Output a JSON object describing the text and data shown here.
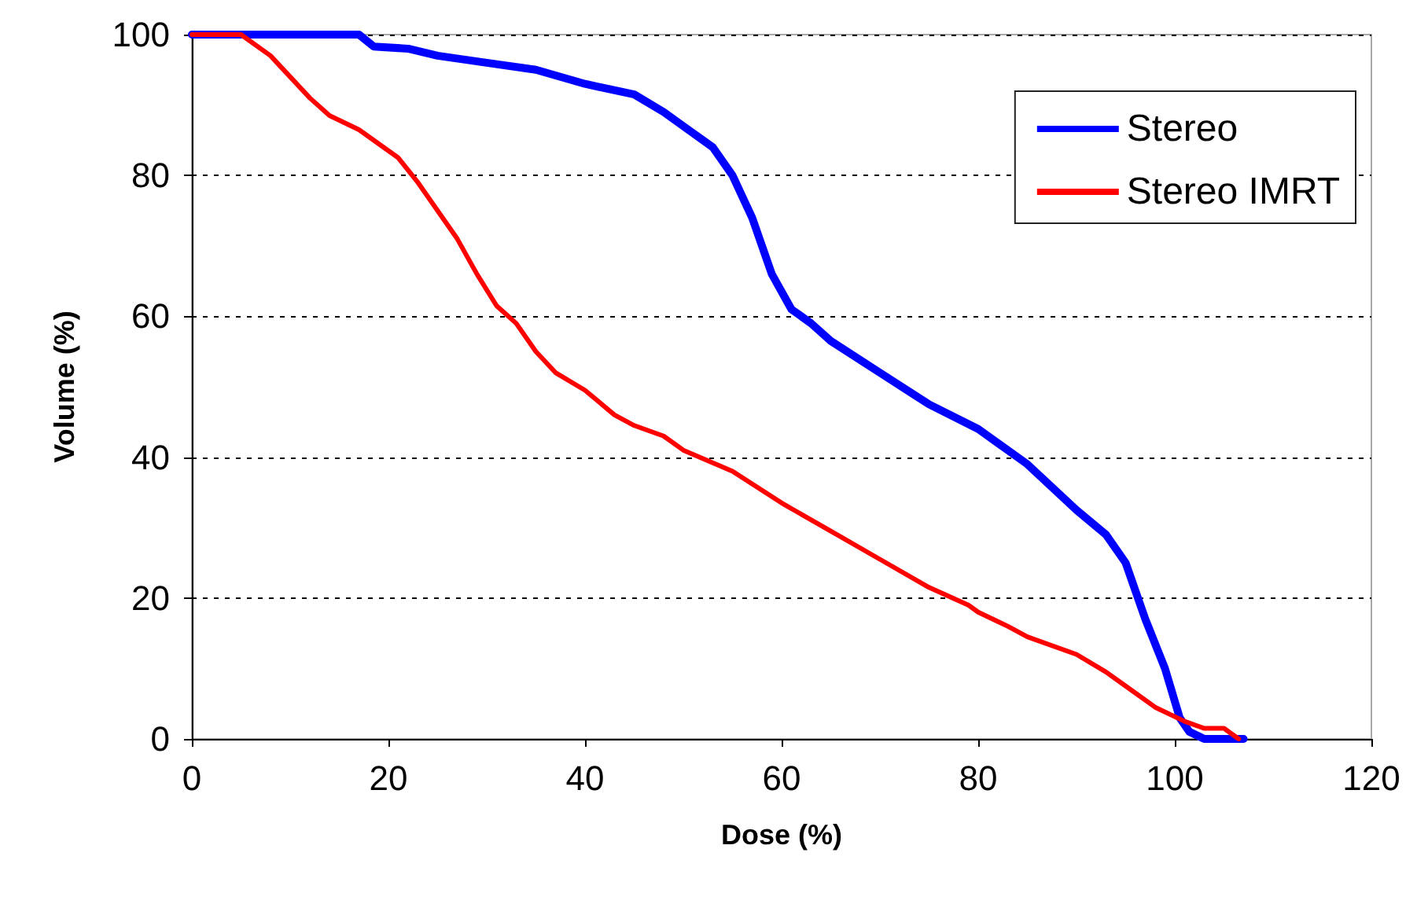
{
  "chart_data": {
    "type": "line",
    "xlabel": "Dose (%)",
    "ylabel": "Volume (%)",
    "xlim": [
      0,
      120
    ],
    "xticks": [
      0,
      20,
      40,
      60,
      80,
      100,
      120
    ],
    "ylim": [
      0,
      100
    ],
    "yticks": [
      0,
      20,
      40,
      60,
      80,
      100
    ],
    "grid": "y",
    "legend": "top right",
    "marker": "none",
    "line_style": "solid",
    "series": [
      {
        "name": "Stereo",
        "color": "#0000ff",
        "x": [
          0,
          17,
          18.5,
          22,
          25,
          30,
          35,
          40,
          45,
          48,
          50,
          53,
          55,
          57,
          59,
          61,
          63,
          65,
          70,
          75,
          80,
          85,
          90,
          93,
          95,
          97,
          99,
          100.5,
          101.5,
          103,
          107
        ],
        "values": [
          100,
          100,
          98.3,
          98,
          97,
          96,
          95,
          93,
          91.5,
          89,
          87,
          84,
          80,
          74,
          66,
          61,
          59,
          56.5,
          52,
          47.5,
          44,
          39,
          32.5,
          29,
          25,
          17,
          10,
          3,
          1,
          0,
          0
        ]
      },
      {
        "name": "Stereo IMRT",
        "color": "#ff0000",
        "x": [
          0,
          5,
          8,
          12,
          14,
          17,
          21,
          23,
          25,
          27,
          29,
          31,
          33,
          35,
          37,
          40,
          43,
          45,
          48,
          50,
          55,
          60,
          65,
          70,
          75,
          79,
          80,
          83,
          85,
          90,
          93,
          95,
          98,
          101,
          103,
          105,
          106.5
        ],
        "values": [
          100,
          100,
          97,
          91,
          88.5,
          86.5,
          82.5,
          79,
          75,
          71,
          66,
          61.5,
          59,
          55,
          52,
          49.5,
          46,
          44.5,
          43,
          41,
          38,
          33.5,
          29.5,
          25.5,
          21.5,
          19,
          18,
          16,
          14.5,
          12,
          9.5,
          7.5,
          4.5,
          2.5,
          1.5,
          1.5,
          0
        ]
      }
    ]
  }
}
